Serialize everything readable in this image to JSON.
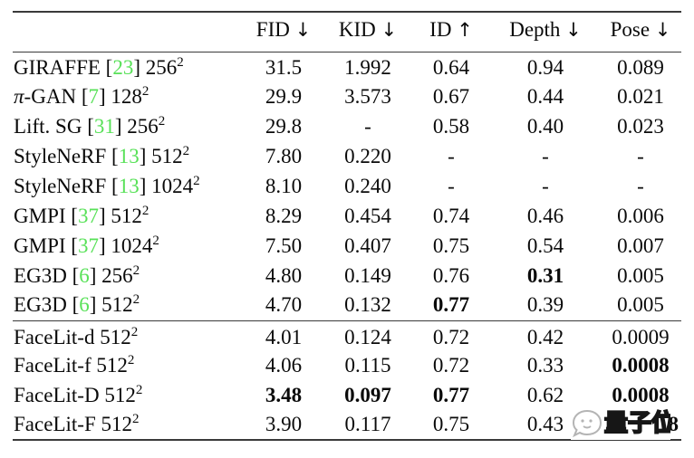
{
  "colors": {
    "citation_green": "#58e158",
    "rule_color": "#3a3a3a",
    "text_color": "#0a0a0a",
    "background": "#ffffff"
  },
  "watermark": {
    "text": "量子位",
    "logo": "qbitai-mascot-icon"
  },
  "table": {
    "columns": [
      {
        "key": "method",
        "label": "",
        "arrow": ""
      },
      {
        "key": "fid",
        "label": "FID",
        "arrow": "↓"
      },
      {
        "key": "kid",
        "label": "KID",
        "arrow": "↓"
      },
      {
        "key": "id",
        "label": "ID",
        "arrow": "↑"
      },
      {
        "key": "depth",
        "label": "Depth",
        "arrow": "↓"
      },
      {
        "key": "pose",
        "label": "Pose",
        "arrow": "↓"
      }
    ],
    "groups": [
      {
        "name": "baselines",
        "rows": [
          {
            "method": {
              "name": "GIRAFFE",
              "cite": "23",
              "size": "256",
              "exp": "2"
            },
            "cells": [
              {
                "v": "31.5"
              },
              {
                "v": "1.992"
              },
              {
                "v": "0.64"
              },
              {
                "v": "0.94"
              },
              {
                "v": "0.089"
              }
            ]
          },
          {
            "method": {
              "name": "π-GAN",
              "cite": "7",
              "size": "128",
              "exp": "2"
            },
            "cells": [
              {
                "v": "29.9"
              },
              {
                "v": "3.573"
              },
              {
                "v": "0.67"
              },
              {
                "v": "0.44"
              },
              {
                "v": "0.021"
              }
            ]
          },
          {
            "method": {
              "name": "Lift. SG",
              "cite": "31",
              "size": "256",
              "exp": "2"
            },
            "cells": [
              {
                "v": "29.8"
              },
              {
                "v": "-"
              },
              {
                "v": "0.58"
              },
              {
                "v": "0.40"
              },
              {
                "v": "0.023"
              }
            ]
          },
          {
            "method": {
              "name": "StyleNeRF",
              "cite": "13",
              "size": "512",
              "exp": "2"
            },
            "cells": [
              {
                "v": "7.80"
              },
              {
                "v": "0.220"
              },
              {
                "v": "-"
              },
              {
                "v": "-"
              },
              {
                "v": "-"
              }
            ]
          },
          {
            "method": {
              "name": "StyleNeRF",
              "cite": "13",
              "size": "1024",
              "exp": "2"
            },
            "cells": [
              {
                "v": "8.10"
              },
              {
                "v": "0.240"
              },
              {
                "v": "-"
              },
              {
                "v": "-"
              },
              {
                "v": "-"
              }
            ]
          },
          {
            "method": {
              "name": "GMPI",
              "cite": "37",
              "size": "512",
              "exp": "2"
            },
            "cells": [
              {
                "v": "8.29"
              },
              {
                "v": "0.454"
              },
              {
                "v": "0.74"
              },
              {
                "v": "0.46"
              },
              {
                "v": "0.006"
              }
            ]
          },
          {
            "method": {
              "name": "GMPI",
              "cite": "37",
              "size": "1024",
              "exp": "2"
            },
            "cells": [
              {
                "v": "7.50"
              },
              {
                "v": "0.407"
              },
              {
                "v": "0.75"
              },
              {
                "v": "0.54"
              },
              {
                "v": "0.007"
              }
            ]
          },
          {
            "method": {
              "name": "EG3D",
              "cite": "6",
              "size": "256",
              "exp": "2"
            },
            "cells": [
              {
                "v": "4.80"
              },
              {
                "v": "0.149"
              },
              {
                "v": "0.76"
              },
              {
                "v": "0.31",
                "bold": true
              },
              {
                "v": "0.005"
              }
            ]
          },
          {
            "method": {
              "name": "EG3D",
              "cite": "6",
              "size": "512",
              "exp": "2"
            },
            "cells": [
              {
                "v": "4.70"
              },
              {
                "v": "0.132"
              },
              {
                "v": "0.77",
                "bold": true
              },
              {
                "v": "0.39"
              },
              {
                "v": "0.005"
              }
            ]
          }
        ]
      },
      {
        "name": "facelit",
        "rows": [
          {
            "method": {
              "name": "FaceLit-d",
              "cite": null,
              "size": "512",
              "exp": "2"
            },
            "cells": [
              {
                "v": "4.01"
              },
              {
                "v": "0.124"
              },
              {
                "v": "0.72"
              },
              {
                "v": "0.42"
              },
              {
                "v": "0.0009"
              }
            ]
          },
          {
            "method": {
              "name": "FaceLit-f",
              "cite": null,
              "size": "512",
              "exp": "2"
            },
            "cells": [
              {
                "v": "4.06"
              },
              {
                "v": "0.115"
              },
              {
                "v": "0.72"
              },
              {
                "v": "0.33"
              },
              {
                "v": "0.0008",
                "bold": true
              }
            ]
          },
          {
            "method": {
              "name": "FaceLit-D",
              "cite": null,
              "size": "512",
              "exp": "2"
            },
            "cells": [
              {
                "v": "3.48",
                "bold": true
              },
              {
                "v": "0.097",
                "bold": true
              },
              {
                "v": "0.77",
                "bold": true
              },
              {
                "v": "0.62"
              },
              {
                "v": "0.0008",
                "bold": true
              }
            ]
          },
          {
            "method": {
              "name": "FaceLit-F",
              "cite": null,
              "size": "512",
              "exp": "2"
            },
            "cells": [
              {
                "v": "3.90"
              },
              {
                "v": "0.117"
              },
              {
                "v": "0.75"
              },
              {
                "v": "0.43"
              },
              {
                "v": "0.0008",
                "bold": true,
                "watermarked": true,
                "align": "right"
              }
            ]
          }
        ]
      }
    ]
  }
}
